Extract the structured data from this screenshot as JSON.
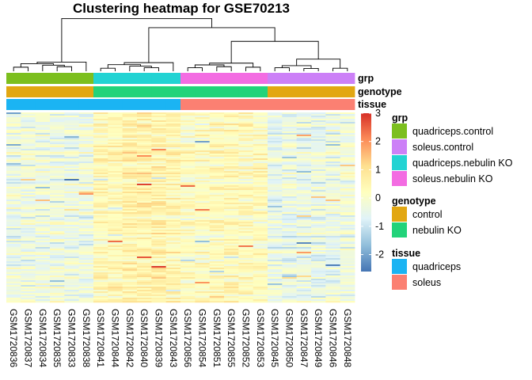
{
  "chart_data": {
    "type": "heatmap",
    "title": "Clustering heatmap for GSE70213",
    "columns": [
      "GSM1720836",
      "GSM1720837",
      "GSM1720834",
      "GSM1720835",
      "GSM1720833",
      "GSM1720838",
      "GSM1720841",
      "GSM1720844",
      "GSM1720842",
      "GSM1720840",
      "GSM1720839",
      "GSM1720843",
      "GSM1720856",
      "GSM1720854",
      "GSM1720851",
      "GSM1720855",
      "GSM1720852",
      "GSM1720853",
      "GSM1720845",
      "GSM1720850",
      "GSM1720847",
      "GSM1720849",
      "GSM1720846",
      "GSM1720848"
    ],
    "annotation_labels": [
      "grp",
      "genotype",
      "tissue"
    ],
    "annotations": {
      "grp": [
        "quadriceps.control",
        "quadriceps.control",
        "quadriceps.control",
        "quadriceps.control",
        "quadriceps.control",
        "quadriceps.control",
        "quadriceps.nebulin KO",
        "quadriceps.nebulin KO",
        "quadriceps.nebulin KO",
        "quadriceps.nebulin KO",
        "quadriceps.nebulin KO",
        "quadriceps.nebulin KO",
        "soleus.nebulin KO",
        "soleus.nebulin KO",
        "soleus.nebulin KO",
        "soleus.nebulin KO",
        "soleus.nebulin KO",
        "soleus.nebulin KO",
        "soleus.control",
        "soleus.control",
        "soleus.control",
        "soleus.control",
        "soleus.control",
        "soleus.control"
      ],
      "genotype": [
        "control",
        "control",
        "control",
        "control",
        "control",
        "control",
        "nebulin KO",
        "nebulin KO",
        "nebulin KO",
        "nebulin KO",
        "nebulin KO",
        "nebulin KO",
        "nebulin KO",
        "nebulin KO",
        "nebulin KO",
        "nebulin KO",
        "nebulin KO",
        "nebulin KO",
        "control",
        "control",
        "control",
        "control",
        "control",
        "control"
      ],
      "tissue": [
        "quadriceps",
        "quadriceps",
        "quadriceps",
        "quadriceps",
        "quadriceps",
        "quadriceps",
        "quadriceps",
        "quadriceps",
        "quadriceps",
        "quadriceps",
        "quadriceps",
        "quadriceps",
        "soleus",
        "soleus",
        "soleus",
        "soleus",
        "soleus",
        "soleus",
        "soleus",
        "soleus",
        "soleus",
        "soleus",
        "soleus",
        "soleus"
      ]
    },
    "color_scale": {
      "range": [
        -2.6,
        3
      ],
      "ticks": [
        3,
        2,
        1,
        0,
        -1,
        -2
      ],
      "colors": [
        "#4575b4",
        "#91bfdb",
        "#e0f3f8",
        "#ffffbf",
        "#fee090",
        "#fc8d59",
        "#d73027"
      ]
    },
    "column_mean_level": [
      -0.3,
      -0.3,
      -0.3,
      -0.3,
      -0.3,
      -0.3,
      0.4,
      0.4,
      0.6,
      0.6,
      0.6,
      0.5,
      0.2,
      0.2,
      0.3,
      0.4,
      0.3,
      0.3,
      -0.4,
      -0.4,
      -0.4,
      -0.4,
      -0.4,
      -0.3
    ],
    "legends": [
      {
        "title": "grp",
        "items": [
          {
            "label": "quadriceps.control",
            "color": "#7cbf1e"
          },
          {
            "label": "soleus.control",
            "color": "#cc80f7"
          },
          {
            "label": "quadriceps.nebulin KO",
            "color": "#22d3d3"
          },
          {
            "label": "soleus.nebulin KO",
            "color": "#f36ce2"
          }
        ]
      },
      {
        "title": "genotype",
        "items": [
          {
            "label": "control",
            "color": "#e2a712"
          },
          {
            "label": "nebulin KO",
            "color": "#22d37a"
          }
        ]
      },
      {
        "title": "tissue",
        "items": [
          {
            "label": "quadriceps",
            "color": "#1bb4f3"
          },
          {
            "label": "soleus",
            "color": "#fb8072"
          }
        ]
      }
    ]
  }
}
